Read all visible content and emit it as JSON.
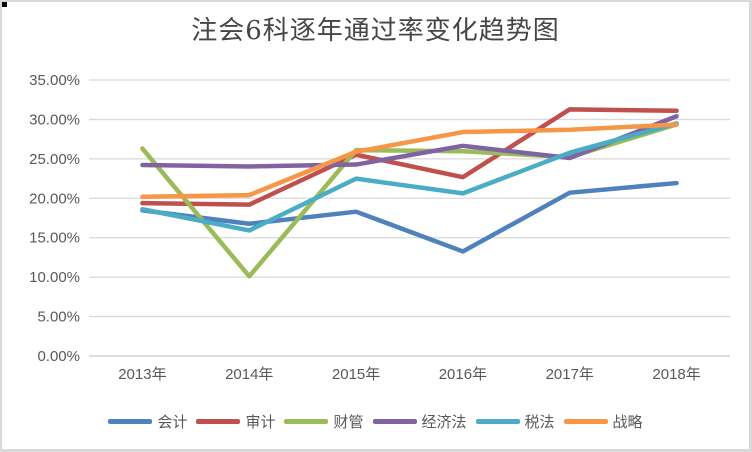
{
  "chart_data": {
    "type": "line",
    "title": "注会6科逐年通过率变化趋势图",
    "categories": [
      "2013年",
      "2014年",
      "2015年",
      "2016年",
      "2017年",
      "2018年"
    ],
    "series": [
      {
        "name": "会计",
        "color": "#4F81BD",
        "values": [
          18.47,
          16.77,
          18.3,
          13.26,
          20.71,
          21.93
        ]
      },
      {
        "name": "审计",
        "color": "#C0504D",
        "values": [
          19.38,
          19.19,
          25.52,
          22.68,
          31.28,
          31.1
        ]
      },
      {
        "name": "财管",
        "color": "#9BBB59",
        "values": [
          26.31,
          10.1,
          26.1,
          25.97,
          25.22,
          29.37
        ]
      },
      {
        "name": "经济法",
        "color": "#8064A2",
        "values": [
          24.22,
          24.03,
          24.28,
          26.65,
          25.11,
          30.4
        ]
      },
      {
        "name": "税法",
        "color": "#4BACC6",
        "values": [
          18.61,
          15.92,
          22.49,
          20.62,
          25.78,
          29.5
        ]
      },
      {
        "name": "战略",
        "color": "#F79646",
        "values": [
          20.19,
          20.4,
          25.9,
          28.4,
          28.69,
          29.35
        ]
      }
    ],
    "y_ticks": [
      "35.00%",
      "30.00%",
      "25.00%",
      "20.00%",
      "15.00%",
      "10.00%",
      "5.00%",
      "0.00%"
    ],
    "ylim": [
      0,
      35
    ],
    "y_step": 5,
    "grid": true,
    "legend_position": "bottom",
    "xlabel": "",
    "ylabel": ""
  },
  "style": {
    "grid_color": "#D9D9D9",
    "axis_line_color": "#C9C9C9",
    "axis_text_color": "#595959",
    "title_color": "#464646",
    "background": "#FFFFFF",
    "border_color": "#D9D9D9",
    "line_width": 4.5
  }
}
